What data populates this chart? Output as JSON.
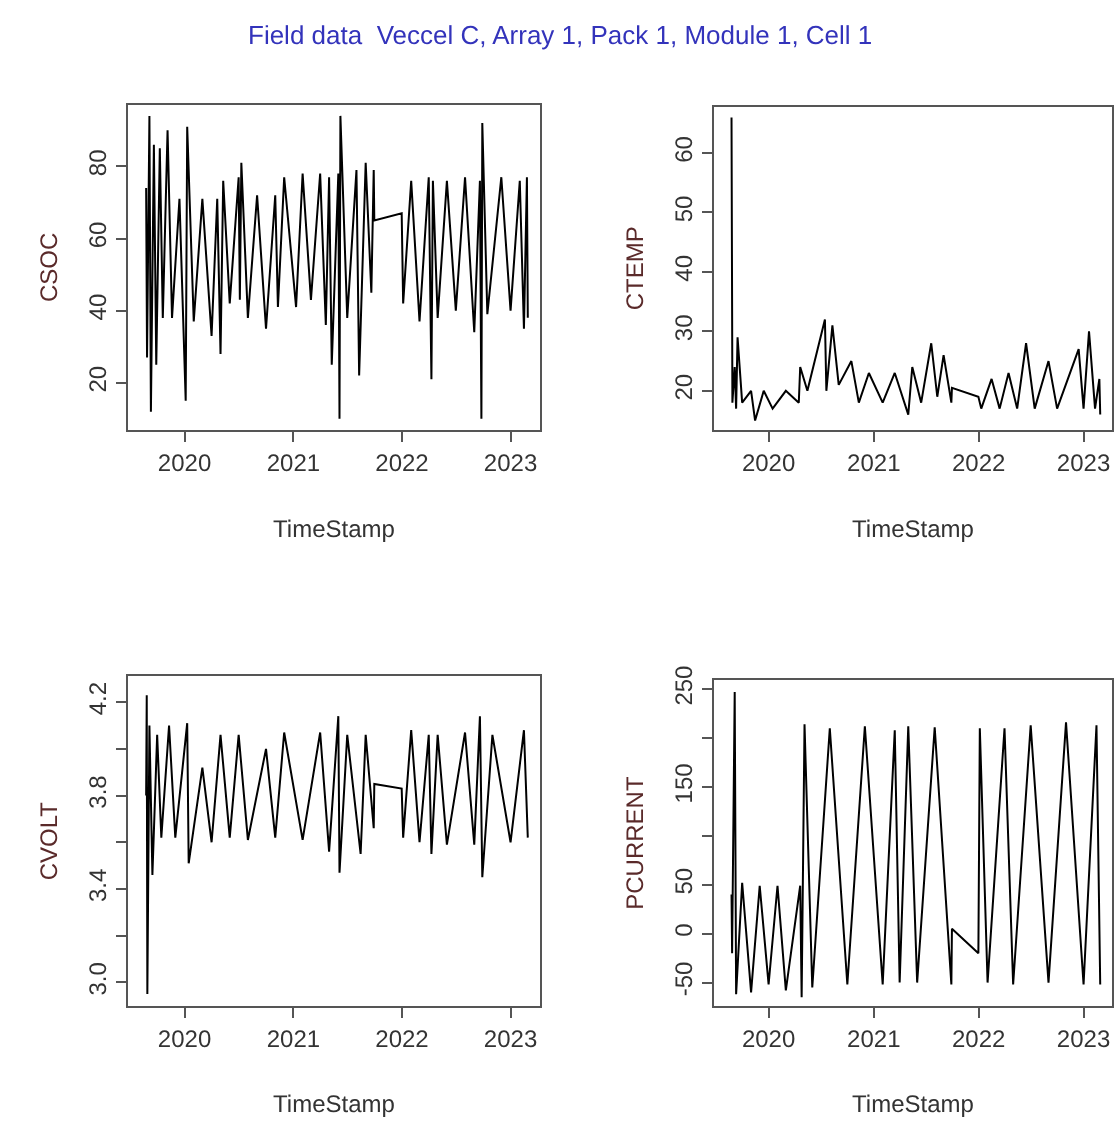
{
  "chart_data": [
    {
      "type": "line",
      "title": "Field data  Veccel C, Array 1, Pack 1, Module 1, Cell 1",
      "xlabel": "TimeStamp",
      "ylabel": "CSOC",
      "xlim": [
        "2019-06-25",
        "2023-04-10"
      ],
      "xticks": [
        "2020",
        "2021",
        "2022",
        "2023"
      ],
      "ylim": [
        6.9,
        97.1
      ],
      "yticks": [
        20,
        40,
        60,
        80
      ],
      "x": [
        "2019-08-25",
        "2019-08-28",
        "2019-09-05",
        "2019-09-10",
        "2019-09-20",
        "2019-09-28",
        "2019-10-10",
        "2019-10-20",
        "2019-11-05",
        "2019-11-20",
        "2019-12-15",
        "2020-01-05",
        "2020-01-10",
        "2020-02-01",
        "2020-03-01",
        "2020-04-01",
        "2020-04-20",
        "2020-05-01",
        "2020-05-10",
        "2020-06-01",
        "2020-07-01",
        "2020-07-05",
        "2020-07-10",
        "2020-08-01",
        "2020-09-01",
        "2020-10-01",
        "2020-11-01",
        "2020-11-10",
        "2020-12-01",
        "2021-01-10",
        "2021-02-01",
        "2021-03-01",
        "2021-04-01",
        "2021-04-20",
        "2021-05-01",
        "2021-05-10",
        "2021-06-01",
        "2021-06-05",
        "2021-06-08",
        "2021-07-01",
        "2021-08-01",
        "2021-08-10",
        "2021-09-01",
        "2021-09-20",
        "2021-09-28",
        "2021-09-30",
        "2021-12-31",
        "2022-01-05",
        "2022-02-01",
        "2022-03-01",
        "2022-04-01",
        "2022-04-10",
        "2022-04-15",
        "2022-05-01",
        "2022-06-01",
        "2022-07-01",
        "2022-08-01",
        "2022-09-01",
        "2022-09-20",
        "2022-09-25",
        "2022-09-28",
        "2022-10-15",
        "2022-12-01",
        "2023-01-01",
        "2023-02-01",
        "2023-02-15",
        "2023-02-25",
        "2023-02-28"
      ],
      "series": [
        {
          "color": "#000000",
          "values": [
            74,
            27,
            94,
            12,
            86,
            25,
            85,
            38,
            90,
            38,
            71,
            15,
            91,
            37,
            71,
            33,
            71,
            28,
            76,
            42,
            77,
            43,
            81,
            38,
            72,
            35,
            72,
            41,
            77,
            41,
            78,
            43,
            78,
            36,
            77,
            25,
            78,
            10,
            94,
            38,
            79,
            22,
            81,
            45,
            79,
            65,
            67,
            42,
            76,
            37,
            77,
            21,
            76,
            38,
            76,
            40,
            77,
            34,
            76,
            10,
            92,
            39,
            77,
            40,
            76,
            35,
            77,
            38
          ]
        }
      ]
    },
    {
      "type": "line",
      "xlabel": "TimeStamp",
      "ylabel": "CTEMP",
      "xlim": [
        "2019-06-25",
        "2023-04-10"
      ],
      "xticks": [
        "2020",
        "2021",
        "2022",
        "2023"
      ],
      "ylim": [
        13.4,
        67.8
      ],
      "yticks": [
        20,
        30,
        40,
        50,
        60
      ],
      "x": [
        "2019-08-25",
        "2019-08-28",
        "2019-09-05",
        "2019-09-10",
        "2019-09-15",
        "2019-10-01",
        "2019-11-01",
        "2019-11-15",
        "2019-12-15",
        "2020-01-15",
        "2020-03-01",
        "2020-04-15",
        "2020-04-20",
        "2020-05-15",
        "2020-07-15",
        "2020-07-20",
        "2020-08-10",
        "2020-09-01",
        "2020-10-15",
        "2020-11-10",
        "2020-12-15",
        "2021-02-01",
        "2021-03-15",
        "2021-05-01",
        "2021-05-15",
        "2021-06-15",
        "2021-07-20",
        "2021-08-10",
        "2021-09-01",
        "2021-09-28",
        "2021-09-30",
        "2021-12-31",
        "2022-01-10",
        "2022-02-15",
        "2022-03-15",
        "2022-04-15",
        "2022-05-15",
        "2022-06-15",
        "2022-07-15",
        "2022-09-01",
        "2022-10-01",
        "2022-12-15",
        "2023-01-01",
        "2023-01-20",
        "2023-02-10",
        "2023-02-25",
        "2023-02-28"
      ],
      "series": [
        {
          "color": "#000000",
          "values": [
            66,
            18,
            24,
            17,
            29,
            18,
            20,
            15,
            20,
            17,
            20,
            18,
            24,
            20,
            32,
            20,
            31,
            21,
            25,
            18,
            23,
            18,
            23,
            16,
            24,
            18,
            28,
            19,
            26,
            18,
            20.5,
            19,
            17,
            22,
            17,
            23,
            17,
            28,
            17,
            25,
            17,
            27,
            17,
            30,
            17,
            22,
            16
          ]
        }
      ]
    },
    {
      "type": "line",
      "xlabel": "TimeStamp",
      "ylabel": "CVOLT",
      "xlim": [
        "2019-06-25",
        "2023-04-10"
      ],
      "xticks": [
        "2020",
        "2021",
        "2022",
        "2023"
      ],
      "ylim": [
        2.9,
        4.31
      ],
      "yticks": [
        {
          "value": 3.0,
          "label": "3.0"
        },
        {
          "value": 3.2,
          "label": null
        },
        3.4,
        {
          "value": 3.6,
          "label": null
        },
        3.8,
        {
          "value": 4.0,
          "label": null
        },
        4.2
      ],
      "x": [
        "2019-08-25",
        "2019-08-27",
        "2019-08-29",
        "2019-09-05",
        "2019-09-15",
        "2019-10-01",
        "2019-10-15",
        "2019-11-10",
        "2019-12-01",
        "2020-01-10",
        "2020-01-15",
        "2020-03-01",
        "2020-04-01",
        "2020-05-01",
        "2020-06-01",
        "2020-07-01",
        "2020-08-01",
        "2020-10-01",
        "2020-11-01",
        "2020-12-01",
        "2021-02-01",
        "2021-04-01",
        "2021-05-01",
        "2021-06-01",
        "2021-06-05",
        "2021-07-01",
        "2021-08-15",
        "2021-09-01",
        "2021-09-28",
        "2021-09-30",
        "2021-12-31",
        "2022-01-05",
        "2022-02-01",
        "2022-03-01",
        "2022-04-01",
        "2022-04-10",
        "2022-05-01",
        "2022-06-01",
        "2022-08-01",
        "2022-09-01",
        "2022-09-20",
        "2022-09-28",
        "2022-11-01",
        "2023-01-01",
        "2023-02-15",
        "2023-02-28"
      ],
      "series": [
        {
          "color": "#000000",
          "values": [
            3.8,
            4.23,
            2.95,
            4.1,
            3.46,
            4.06,
            3.62,
            4.1,
            3.62,
            4.11,
            3.51,
            3.92,
            3.6,
            4.06,
            3.62,
            4.06,
            3.61,
            4.0,
            3.62,
            4.07,
            3.61,
            4.07,
            3.56,
            4.14,
            3.47,
            4.06,
            3.55,
            4.06,
            3.66,
            3.85,
            3.83,
            3.62,
            4.08,
            3.6,
            4.06,
            3.55,
            4.06,
            3.59,
            4.07,
            3.59,
            4.14,
            3.45,
            4.06,
            3.6,
            4.08,
            3.62
          ]
        }
      ]
    },
    {
      "type": "line",
      "xlabel": "TimeStamp",
      "ylabel": "PCURRENT",
      "xlim": [
        "2019-06-25",
        "2023-04-10"
      ],
      "xticks": [
        "2020",
        "2021",
        "2022",
        "2023"
      ],
      "ylim": [
        -73.7,
        258.9
      ],
      "yticks": [
        -50,
        0,
        50,
        {
          "value": 100,
          "label": null
        },
        150,
        {
          "value": 200,
          "label": null
        },
        250
      ],
      "x": [
        "2019-08-25",
        "2019-08-27",
        "2019-09-05",
        "2019-09-10",
        "2019-10-01",
        "2019-11-01",
        "2019-12-01",
        "2020-01-01",
        "2020-02-01",
        "2020-03-01",
        "2020-04-20",
        "2020-04-25",
        "2020-05-05",
        "2020-06-01",
        "2020-08-01",
        "2020-10-01",
        "2020-12-01",
        "2021-02-01",
        "2021-03-15",
        "2021-04-01",
        "2021-05-01",
        "2021-06-01",
        "2021-08-01",
        "2021-09-28",
        "2021-09-30",
        "2021-12-31",
        "2022-01-05",
        "2022-02-01",
        "2022-04-01",
        "2022-05-01",
        "2022-07-01",
        "2022-09-01",
        "2022-11-01",
        "2023-01-01",
        "2023-02-15",
        "2023-02-28"
      ],
      "series": [
        {
          "color": "#000000",
          "values": [
            40,
            -20,
            247,
            -62,
            52,
            -60,
            49,
            -52,
            49,
            -58,
            49,
            -65,
            214,
            -55,
            210,
            -52,
            212,
            -52,
            208,
            -50,
            212,
            -50,
            211,
            -52,
            5,
            -20,
            210,
            -50,
            210,
            -52,
            213,
            -50,
            216,
            -52,
            213,
            -52
          ]
        }
      ]
    }
  ]
}
